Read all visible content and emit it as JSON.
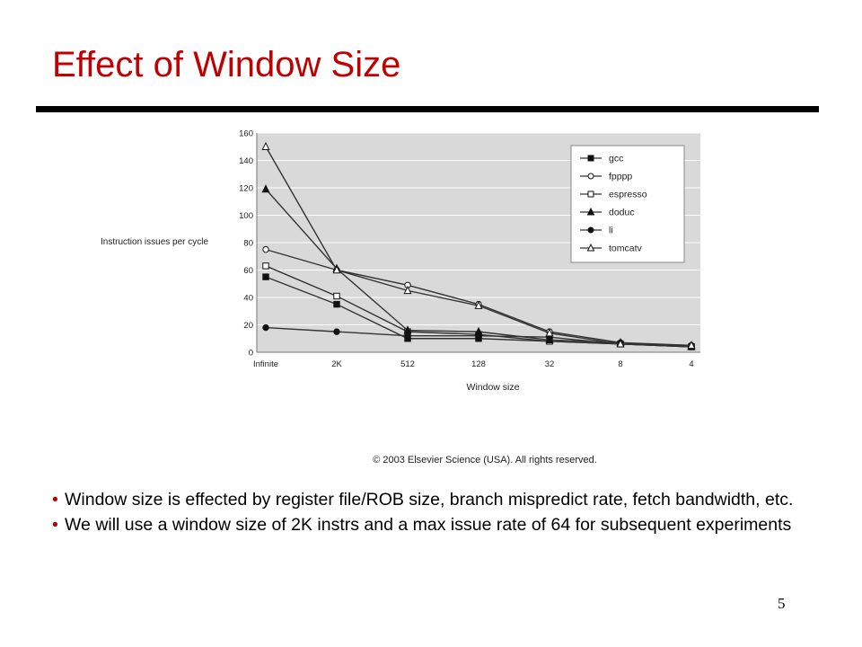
{
  "slide": {
    "title": "Effect of Window Size",
    "bullets": [
      {
        "marker": "•",
        "text": "Window size is effected by register file/ROB size, branch mispredict rate, fetch bandwidth, etc."
      },
      {
        "marker": "•",
        "text": "We will use a window size of 2K instrs and a max issue rate of 64 for subsequent experiments"
      }
    ],
    "page_number": "5",
    "colors": {
      "title": "#c00000",
      "bullet": "#c00000",
      "plot_bg": "#d9d9d9",
      "line": "#333333"
    }
  },
  "chart_data": {
    "type": "line",
    "title": "",
    "xlabel": "Window size",
    "ylabel": "Instruction issues per cycle",
    "categories": [
      "Infinite",
      "2K",
      "512",
      "128",
      "32",
      "8",
      "4"
    ],
    "ylim": [
      0,
      160
    ],
    "yticks": [
      0,
      20,
      40,
      60,
      80,
      100,
      120,
      140,
      160
    ],
    "grid": true,
    "legend_position": "top-right",
    "series": [
      {
        "name": "gcc",
        "marker": "filled-square",
        "values": [
          55,
          35,
          10,
          10,
          8,
          6,
          4
        ]
      },
      {
        "name": "fpppp",
        "marker": "open-circle",
        "values": [
          75,
          60,
          49,
          35,
          15,
          7,
          5
        ]
      },
      {
        "name": "espresso",
        "marker": "open-square",
        "values": [
          63,
          41,
          15,
          13,
          8,
          6,
          4
        ]
      },
      {
        "name": "doduc",
        "marker": "filled-triangle",
        "values": [
          119,
          61,
          16,
          15,
          9,
          7,
          4
        ]
      },
      {
        "name": "li",
        "marker": "filled-circle",
        "values": [
          18,
          15,
          12,
          12,
          11,
          6,
          4
        ]
      },
      {
        "name": "tomcatv",
        "marker": "open-triangle",
        "values": [
          150,
          60,
          45,
          34,
          14,
          6,
          5
        ]
      }
    ],
    "copyright": "© 2003 Elsevier Science (USA). All rights reserved."
  }
}
